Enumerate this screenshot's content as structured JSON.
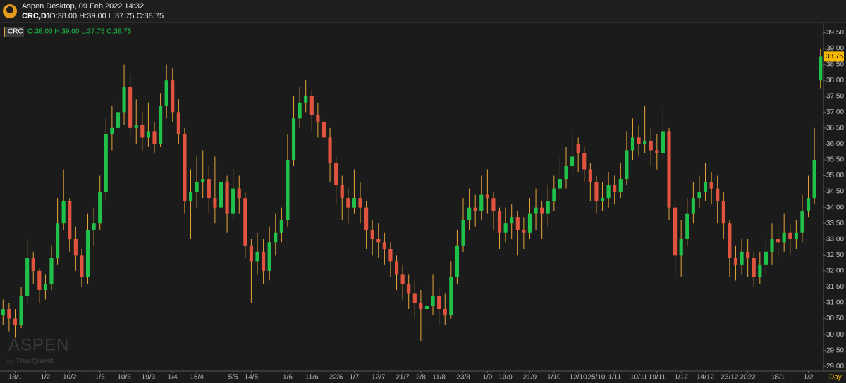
{
  "header": {
    "app_title": "Aspen Desktop, 09 Feb 2022 14:32",
    "symbol": "CRC,D1",
    "ohlc": "O:38.00 H:39.00 L:37.75 C:38.75"
  },
  "watermark": {
    "brand": "ASPEN",
    "by": "by",
    "company": "ThaiQuest"
  },
  "chart_data": {
    "type": "candlestick",
    "series_name": "CRC",
    "legend_ohlc": "O:38.00 H:39.00 L:37.75 C:38.75",
    "period_label": "Day",
    "up_color": "#1fc14a",
    "down_color": "#e0533f",
    "wick_color": "#e6a53a",
    "last_price_color": "#f5b800",
    "ylim": [
      28.85,
      39.8
    ],
    "yticks": [
      {
        "value": 29,
        "label": "29.00"
      },
      {
        "value": 29.5,
        "label": "29.50"
      },
      {
        "value": 30,
        "label": "30.00"
      },
      {
        "value": 30.5,
        "label": "30.50"
      },
      {
        "value": 31,
        "label": "31.00"
      },
      {
        "value": 31.5,
        "label": "31.50"
      },
      {
        "value": 32,
        "label": "32.00"
      },
      {
        "value": 32.5,
        "label": "32.50"
      },
      {
        "value": 33,
        "label": "33.00"
      },
      {
        "value": 33.5,
        "label": "33.50"
      },
      {
        "value": 34,
        "label": "34.00"
      },
      {
        "value": 34.5,
        "label": "34.50"
      },
      {
        "value": 35,
        "label": "35.00"
      },
      {
        "value": 35.5,
        "label": "35.50"
      },
      {
        "value": 36,
        "label": "36.00"
      },
      {
        "value": 36.5,
        "label": "36.50"
      },
      {
        "value": 37,
        "label": "37.00"
      },
      {
        "value": 37.5,
        "label": "37.50"
      },
      {
        "value": 38,
        "label": "38.00"
      },
      {
        "value": 38.5,
        "label": "38.50"
      },
      {
        "value": 39,
        "label": "39.00"
      },
      {
        "value": 39.5,
        "label": "39.50"
      }
    ],
    "categories": [
      null,
      null,
      "18/1",
      null,
      null,
      null,
      null,
      "1/2",
      null,
      null,
      null,
      "10/2",
      null,
      null,
      null,
      null,
      "1/3",
      null,
      null,
      null,
      "10/3",
      null,
      null,
      null,
      "19/3",
      null,
      null,
      null,
      "1/4",
      null,
      null,
      null,
      "16/4",
      null,
      null,
      null,
      null,
      null,
      "5/5",
      null,
      null,
      "14/5",
      null,
      null,
      null,
      null,
      null,
      "1/6",
      null,
      null,
      null,
      "11/6",
      null,
      null,
      null,
      "22/6",
      null,
      null,
      "1/7",
      null,
      null,
      null,
      "12/7",
      null,
      null,
      null,
      "21/7",
      null,
      null,
      "2/8",
      null,
      null,
      "11/8",
      null,
      null,
      null,
      "23/8",
      null,
      null,
      null,
      "1/9",
      null,
      null,
      "10/9",
      null,
      null,
      null,
      "21/9",
      null,
      null,
      null,
      "1/10",
      null,
      null,
      null,
      "12/10",
      null,
      null,
      "25/10",
      null,
      null,
      "1/11",
      null,
      null,
      null,
      "10/11",
      null,
      null,
      "19/11",
      null,
      null,
      null,
      "1/12",
      null,
      null,
      null,
      "14/12",
      null,
      null,
      null,
      "23/12",
      null,
      null,
      "2022",
      null,
      null,
      null,
      null,
      "18/1",
      null,
      null,
      null,
      null,
      "1/2",
      null,
      null
    ],
    "open": [
      30.6,
      30.8,
      30.5,
      30.3,
      31.2,
      32.4,
      32.0,
      31.4,
      31.6,
      32.4,
      33.5,
      34.2,
      33.0,
      32.5,
      31.8,
      33.3,
      33.5,
      34.5,
      36.3,
      36.5,
      37.0,
      37.8,
      36.5,
      36.6,
      36.2,
      36.4,
      36.0,
      37.2,
      38.0,
      37.0,
      36.3,
      34.2,
      34.5,
      34.8,
      34.9,
      34.3,
      34.0,
      34.8,
      33.8,
      34.6,
      34.3,
      32.8,
      32.3,
      32.6,
      32.0,
      32.9,
      33.2,
      33.6,
      35.5,
      36.8,
      37.3,
      37.5,
      36.9,
      36.7,
      36.2,
      35.4,
      34.7,
      34.3,
      34.0,
      34.3,
      34.0,
      33.3,
      33.0,
      32.9,
      32.7,
      32.3,
      31.9,
      31.6,
      31.3,
      31.0,
      30.8,
      30.9,
      31.2,
      30.8,
      30.6,
      31.8,
      32.8,
      33.6,
      34.0,
      33.9,
      34.4,
      34.3,
      33.9,
      33.2,
      33.5,
      33.7,
      33.3,
      33.2,
      33.8,
      34.0,
      33.8,
      34.2,
      34.6,
      34.9,
      35.3,
      36.0,
      35.7,
      35.2,
      34.8,
      34.2,
      34.3,
      34.7,
      34.5,
      34.9,
      35.8,
      36.2,
      36.0,
      36.1,
      35.8,
      35.7,
      36.4,
      34.0,
      32.5,
      33.0,
      33.8,
      34.3,
      34.5,
      34.8,
      34.6,
      34.2,
      33.5,
      32.4,
      32.2,
      32.6,
      32.4,
      31.8,
      32.2,
      32.6,
      33.0,
      32.9,
      33.2,
      33.0,
      33.2,
      33.9,
      34.3,
      38.0
    ],
    "high": [
      31.1,
      31.0,
      30.8,
      31.5,
      33.0,
      32.6,
      32.1,
      31.9,
      32.8,
      34.3,
      35.2,
      34.3,
      33.4,
      32.7,
      33.8,
      34.0,
      35.0,
      36.8,
      37.2,
      37.5,
      38.5,
      38.2,
      37.4,
      37.0,
      37.3,
      36.7,
      37.6,
      38.5,
      38.4,
      37.4,
      36.5,
      35.2,
      35.6,
      35.8,
      35.3,
      35.6,
      35.5,
      35.0,
      35.2,
      35.0,
      34.5,
      33.0,
      33.2,
      33.0,
      33.4,
      33.8,
      34.0,
      36.3,
      37.5,
      37.8,
      38.0,
      37.7,
      37.3,
      37.0,
      36.5,
      35.6,
      35.0,
      34.6,
      35.2,
      34.8,
      34.2,
      33.6,
      33.5,
      33.2,
      32.9,
      32.5,
      32.2,
      31.9,
      31.7,
      31.4,
      31.6,
      31.9,
      31.5,
      31.3,
      32.3,
      33.3,
      34.3,
      34.6,
      34.4,
      35.0,
      35.2,
      34.5,
      34.0,
      34.0,
      34.1,
      33.9,
      33.7,
      34.3,
      34.6,
      34.2,
      34.7,
      35.0,
      35.6,
      35.9,
      36.4,
      36.2,
      35.9,
      35.4,
      35.0,
      34.8,
      35.1,
      35.0,
      35.4,
      36.4,
      36.8,
      36.6,
      37.2,
      36.5,
      36.3,
      37.2,
      36.5,
      34.2,
      33.6,
      34.3,
      34.8,
      35.0,
      35.4,
      35.1,
      35.0,
      34.5,
      33.6,
      32.8,
      33.0,
      33.0,
      32.6,
      32.6,
      33.0,
      33.5,
      33.4,
      33.8,
      33.5,
      33.6,
      34.4,
      35.0,
      36.5,
      39.0
    ],
    "low": [
      30.3,
      30.1,
      29.9,
      30.2,
      31.0,
      31.6,
      31.0,
      31.1,
      31.4,
      32.2,
      33.3,
      32.6,
      32.0,
      31.5,
      31.6,
      32.8,
      33.3,
      34.2,
      35.8,
      36.0,
      36.6,
      36.2,
      36.0,
      35.8,
      35.9,
      35.7,
      35.9,
      36.8,
      36.7,
      36.0,
      33.8,
      33.0,
      34.0,
      34.3,
      33.8,
      33.5,
      33.6,
      33.2,
      33.6,
      33.8,
      32.4,
      31.0,
      31.9,
      31.6,
      31.7,
      32.5,
      32.9,
      33.4,
      35.3,
      36.5,
      37.0,
      36.4,
      36.2,
      35.6,
      34.8,
      34.1,
      33.6,
      33.5,
      33.8,
      33.5,
      32.7,
      32.5,
      32.4,
      32.2,
      31.8,
      31.4,
      31.1,
      30.8,
      30.5,
      29.8,
      30.3,
      30.6,
      30.3,
      30.3,
      30.5,
      31.6,
      32.6,
      33.3,
      33.4,
      33.6,
      33.8,
      33.3,
      32.7,
      32.9,
      33.0,
      32.5,
      32.7,
      33.0,
      33.3,
      33.0,
      33.4,
      33.9,
      34.3,
      34.6,
      35.0,
      35.1,
      34.8,
      34.2,
      33.8,
      33.9,
      34.0,
      34.1,
      34.3,
      34.7,
      35.5,
      35.6,
      35.7,
      35.3,
      35.2,
      35.5,
      33.6,
      31.8,
      31.8,
      32.8,
      33.5,
      34.0,
      34.2,
      34.1,
      33.5,
      33.0,
      31.8,
      31.7,
      31.9,
      31.8,
      31.5,
      31.6,
      31.9,
      32.2,
      32.4,
      32.6,
      32.5,
      32.7,
      32.9,
      33.7,
      34.1,
      37.75
    ],
    "close": [
      30.8,
      30.5,
      30.3,
      31.2,
      32.4,
      32.0,
      31.4,
      31.6,
      32.4,
      33.5,
      34.2,
      33.0,
      32.5,
      31.8,
      33.3,
      33.5,
      34.5,
      36.3,
      36.5,
      37.0,
      37.8,
      36.5,
      36.6,
      36.2,
      36.4,
      36.0,
      37.2,
      38.0,
      37.0,
      36.3,
      34.2,
      34.5,
      34.8,
      34.9,
      34.3,
      34.0,
      34.8,
      33.8,
      34.6,
      34.3,
      32.8,
      32.3,
      32.6,
      32.0,
      32.9,
      33.2,
      33.6,
      35.5,
      36.8,
      37.3,
      37.5,
      36.9,
      36.7,
      36.2,
      35.4,
      34.7,
      34.3,
      34.0,
      34.3,
      34.0,
      33.3,
      33.0,
      32.9,
      32.7,
      32.3,
      31.9,
      31.6,
      31.3,
      31.0,
      30.8,
      30.9,
      31.2,
      30.8,
      30.6,
      31.8,
      32.8,
      33.6,
      34.0,
      33.9,
      34.4,
      34.3,
      33.9,
      33.2,
      33.5,
      33.7,
      33.3,
      33.2,
      33.8,
      34.0,
      33.8,
      34.2,
      34.6,
      34.9,
      35.3,
      35.6,
      35.7,
      35.2,
      34.8,
      34.2,
      34.3,
      34.7,
      34.5,
      34.9,
      35.8,
      36.2,
      36.0,
      36.1,
      35.8,
      35.7,
      36.4,
      34.0,
      32.5,
      33.0,
      33.8,
      34.3,
      34.5,
      34.8,
      34.6,
      34.2,
      33.5,
      32.4,
      32.2,
      32.6,
      32.4,
      31.8,
      32.2,
      32.6,
      33.0,
      32.9,
      33.2,
      33.0,
      33.2,
      33.9,
      34.3,
      35.5,
      38.75
    ]
  }
}
